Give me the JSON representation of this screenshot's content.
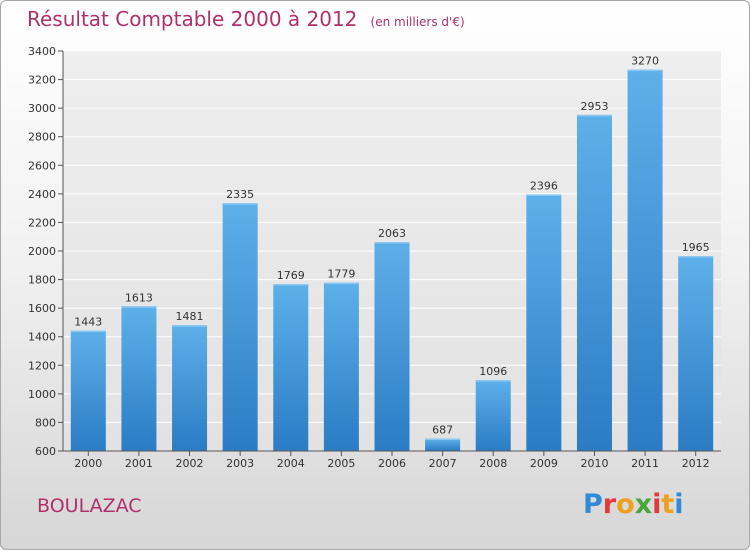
{
  "chart_data": {
    "type": "bar",
    "title": "Résultat Comptable 2000 à 2012",
    "subtitle": "(en milliers d'€)",
    "categories": [
      "2000",
      "2001",
      "2002",
      "2003",
      "2004",
      "2005",
      "2006",
      "2007",
      "2008",
      "2009",
      "2010",
      "2011",
      "2012"
    ],
    "values": [
      1443,
      1613,
      1481,
      2335,
      1769,
      1779,
      2063,
      687,
      1096,
      2396,
      2953,
      3270,
      1965
    ],
    "ylim": [
      600,
      3400
    ],
    "yticks": [
      600,
      800,
      1000,
      1200,
      1400,
      1600,
      1800,
      2000,
      2200,
      2400,
      2600,
      2800,
      3000,
      3200,
      3400
    ],
    "grid": true,
    "xlabel": "",
    "ylabel": ""
  },
  "footer": {
    "commune": "BOULAZAC",
    "logo_letters": [
      "P",
      "r",
      "o",
      "x",
      "i",
      "t",
      "i"
    ],
    "logo_colors": [
      "#2e8bd8",
      "#e23a3a",
      "#f0a020",
      "#4aa63a",
      "#e23a3a",
      "#f0a020",
      "#2e8bd8"
    ]
  },
  "colors": {
    "bar": "#3a92d8",
    "title": "#b0306a"
  }
}
